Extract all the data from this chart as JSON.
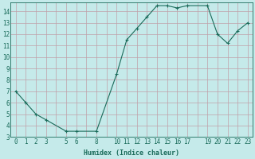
{
  "x": [
    0,
    1,
    2,
    3,
    5,
    6,
    8,
    10,
    11,
    12,
    13,
    14,
    15,
    16,
    17,
    19,
    20,
    21,
    22,
    23
  ],
  "y": [
    7,
    6,
    5,
    4.5,
    3.5,
    3.5,
    3.5,
    8.5,
    11.5,
    12.5,
    13.5,
    14.5,
    14.5,
    14.3,
    14.5,
    14.5,
    12,
    11.2,
    12.3,
    13
  ],
  "line_color": "#1a6b5a",
  "marker": "+",
  "marker_size": 3,
  "bg_color": "#c5eaea",
  "grid_color": "#c0a0a8",
  "xlabel": "Humidex (Indice chaleur)",
  "xlim": [
    -0.5,
    23.5
  ],
  "ylim": [
    3,
    14.8
  ],
  "yticks": [
    3,
    4,
    5,
    6,
    7,
    8,
    9,
    10,
    11,
    12,
    13,
    14
  ],
  "xticks": [
    0,
    1,
    2,
    3,
    5,
    6,
    8,
    10,
    11,
    12,
    13,
    14,
    15,
    16,
    17,
    19,
    20,
    21,
    22,
    23
  ],
  "label_fontsize": 6,
  "tick_fontsize": 5.5
}
